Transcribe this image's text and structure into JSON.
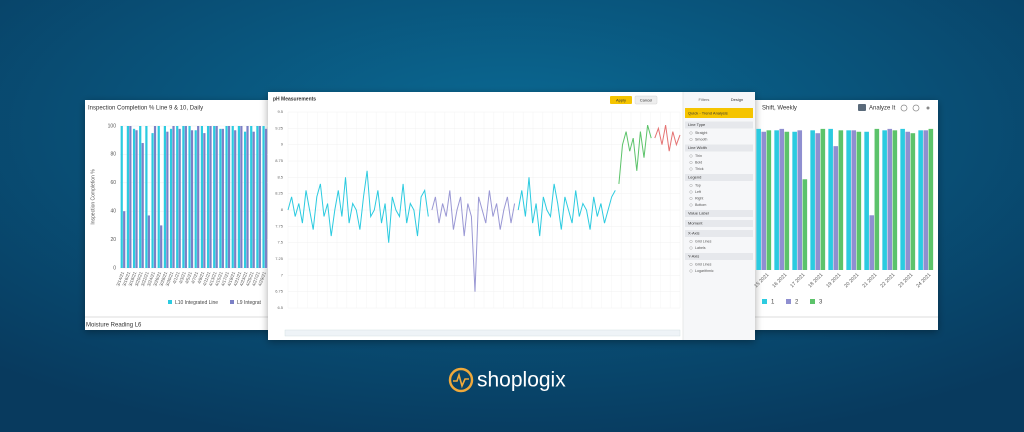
{
  "left_panel": {
    "title": "Inspection Completion % Line 9 & 10, Daily",
    "y_label": "Inspection Completion %",
    "ylim": [
      0,
      100
    ],
    "yticks": [
      0,
      20,
      40,
      60,
      80,
      100
    ],
    "categories": [
      "3/14/21",
      "3/16/21",
      "3/18/21",
      "3/20/21",
      "3/22/21",
      "3/24/21",
      "3/26/21",
      "3/28/21",
      "3/30/21",
      "4/1/21",
      "4/3/21",
      "4/5/21",
      "4/7/21",
      "4/9/21",
      "4/11/21",
      "4/13/21",
      "4/15/21",
      "4/17/21",
      "4/19/21",
      "4/21/21",
      "4/23/21",
      "4/25/21",
      "4/27/21",
      "4/29/21"
    ],
    "series": [
      {
        "name": "L10 Integrated Line",
        "color": "#2ccbe0",
        "values": [
          100,
          100,
          98,
          100,
          100,
          95,
          100,
          100,
          98,
          100,
          100,
          100,
          97,
          100,
          100,
          100,
          98,
          100,
          100,
          100,
          96,
          100,
          100,
          100
        ]
      },
      {
        "name": "L9 Integrat",
        "color": "#7b80c6",
        "values": [
          40,
          100,
          97,
          88,
          37,
          100,
          30,
          96,
          100,
          98,
          100,
          97,
          100,
          95,
          100,
          100,
          98,
          100,
          97,
          100,
          100,
          96,
          100,
          98
        ]
      }
    ],
    "footer": "Moisture Reading L6"
  },
  "center_panel": {
    "title": "pH Measurements",
    "buttons": [
      "Apply",
      "Cancel"
    ],
    "ylim": [
      6.5,
      9.5
    ],
    "yticks": [
      6.5,
      6.75,
      7,
      7.25,
      7.5,
      7.75,
      8,
      8.25,
      8.5,
      8.75,
      9,
      9.25,
      9.5
    ],
    "series": [
      {
        "color": "#2ccbe0",
        "values": [
          8.0,
          8.2,
          7.9,
          8.1,
          7.8,
          8.3,
          8.0,
          7.7,
          8.2,
          8.4,
          7.9,
          8.1,
          7.6,
          8.0,
          8.3,
          7.9,
          8.5,
          7.8,
          8.1,
          8.0,
          7.7,
          8.2,
          8.6,
          7.9,
          8.0,
          8.3,
          7.8,
          8.1,
          7.5,
          8.2,
          8.0,
          7.9,
          8.4,
          7.8,
          8.1,
          8.0,
          7.6,
          8.2,
          8.3,
          7.9
        ]
      },
      {
        "color": "#9a98d4",
        "values": [
          8.0,
          8.2,
          7.8,
          8.1,
          7.9,
          8.3,
          7.7,
          8.0,
          8.2,
          7.6,
          8.1,
          7.9,
          6.75,
          8.2,
          8.0,
          7.8,
          8.3,
          7.9,
          8.1,
          7.7,
          8.0,
          8.2,
          7.8,
          8.1
        ]
      },
      {
        "color": "#2ccbe0",
        "values": [
          8.0,
          8.3,
          7.9,
          8.5,
          7.8,
          8.1,
          7.6,
          8.2,
          8.0,
          7.9,
          8.4,
          8.1,
          7.7,
          8.2,
          8.0,
          7.8,
          8.3,
          7.9,
          8.1,
          8.0,
          7.7,
          8.2,
          7.9,
          8.1,
          7.8,
          8.0,
          8.2,
          8.3
        ]
      },
      {
        "color": "#5cc36a",
        "values": [
          8.4,
          9.0,
          9.2,
          8.9,
          9.1,
          8.6,
          9.2,
          8.8,
          9.3,
          9.1
        ]
      },
      {
        "color": "#e57373",
        "values": [
          9.1,
          9.25,
          9.0,
          9.3,
          8.9,
          9.2,
          9.0,
          9.15
        ]
      }
    ],
    "sidebar": {
      "tabs": [
        "Filters",
        "Design"
      ],
      "preset": "Quick - Trend Analysis",
      "sections": [
        {
          "title": "Line Type",
          "items": [
            "Straight",
            "Smooth"
          ]
        },
        {
          "title": "Line Width",
          "items": [
            "Thin",
            "Bold",
            "Thick"
          ]
        },
        {
          "title": "Legend",
          "items": [
            "Top",
            "Left",
            "Right",
            "Bottom"
          ]
        },
        {
          "title": "Value Label",
          "items": []
        },
        {
          "title": "Moment",
          "items": []
        },
        {
          "title": "X-Axis",
          "items": [
            "Grid Lines",
            "Labels"
          ]
        },
        {
          "title": "Y-Axis",
          "items": [
            "Grid Lines",
            "Logarithmic"
          ]
        }
      ]
    }
  },
  "right_panel": {
    "title": "Shift, Weekly",
    "action": "Analyze It",
    "ylim": [
      0,
      100
    ],
    "categories": [
      "15 2021",
      "16 2021",
      "17 2021",
      "18 2021",
      "19 2021",
      "20 2021",
      "21 2021",
      "22 2021",
      "23 2021",
      "24 2021"
    ],
    "series": [
      {
        "name": "1",
        "color": "#2ccbe0",
        "values": [
          98,
          97,
          96,
          97,
          98,
          97,
          96,
          97,
          98,
          97
        ]
      },
      {
        "name": "2",
        "color": "#8f8fd0",
        "values": [
          96,
          98,
          97,
          95,
          86,
          97,
          38,
          98,
          96,
          97
        ]
      },
      {
        "name": "3",
        "color": "#5cc36a",
        "values": [
          97,
          96,
          63,
          98,
          97,
          96,
          98,
          97,
          95,
          98
        ]
      }
    ]
  },
  "brand": "shoplogix"
}
